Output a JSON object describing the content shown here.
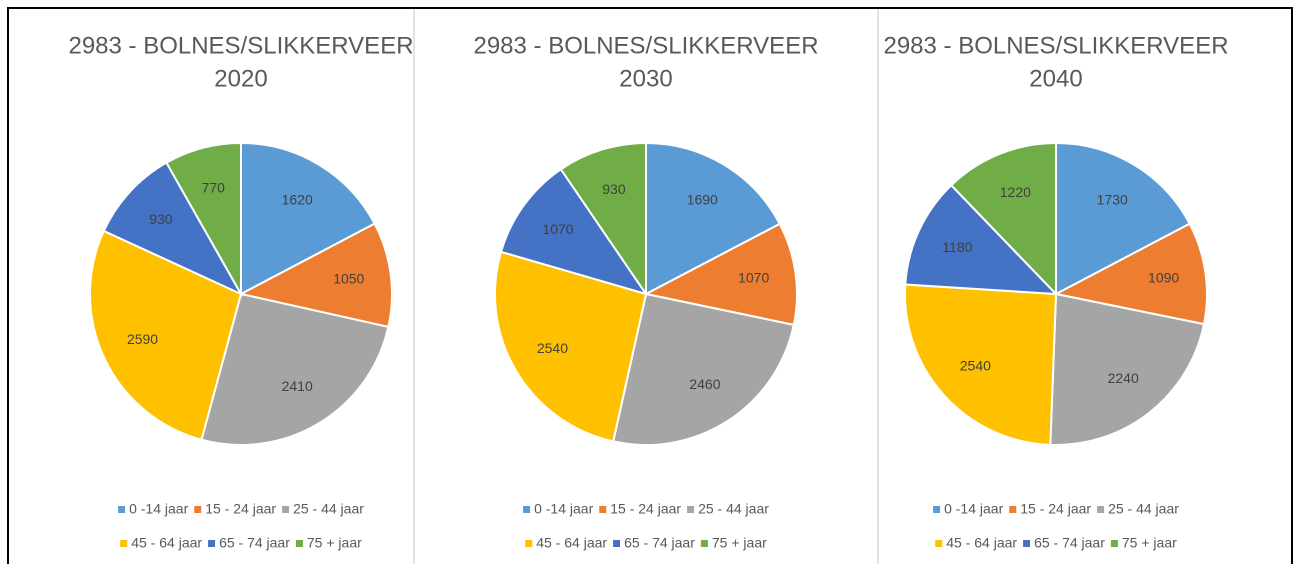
{
  "chart_data": [
    {
      "type": "pie",
      "title": "2983 - BOLNES/SLIKKERVEER",
      "subtitle": "2020",
      "categories": [
        "0 -14 jaar",
        "15 - 24 jaar",
        "25 - 44 jaar",
        "45 - 64 jaar",
        "65 - 74 jaar",
        "75 + jaar"
      ],
      "values": [
        1620,
        1050,
        2410,
        2590,
        930,
        770
      ],
      "colors": [
        "#5b9bd5",
        "#ed7d31",
        "#a5a5a5",
        "#ffc000",
        "#4472c4",
        "#70ad47"
      ],
      "legend": "bottom"
    },
    {
      "type": "pie",
      "title": "2983 - BOLNES/SLIKKERVEER",
      "subtitle": "2030",
      "categories": [
        "0 -14 jaar",
        "15 - 24 jaar",
        "25 - 44 jaar",
        "45 - 64 jaar",
        "65 - 74 jaar",
        "75 + jaar"
      ],
      "values": [
        1690,
        1070,
        2460,
        2540,
        1070,
        930
      ],
      "colors": [
        "#5b9bd5",
        "#ed7d31",
        "#a5a5a5",
        "#ffc000",
        "#4472c4",
        "#70ad47"
      ],
      "legend": "bottom"
    },
    {
      "type": "pie",
      "title": "2983 - BOLNES/SLIKKERVEER",
      "subtitle": "2040",
      "categories": [
        "0 -14 jaar",
        "15 - 24 jaar",
        "25 - 44 jaar",
        "45 - 64 jaar",
        "65 - 74 jaar",
        "75 + jaar"
      ],
      "values": [
        1730,
        1090,
        2240,
        2540,
        1180,
        1220
      ],
      "colors": [
        "#5b9bd5",
        "#ed7d31",
        "#a5a5a5",
        "#ffc000",
        "#4472c4",
        "#70ad47"
      ],
      "legend": "bottom"
    }
  ]
}
